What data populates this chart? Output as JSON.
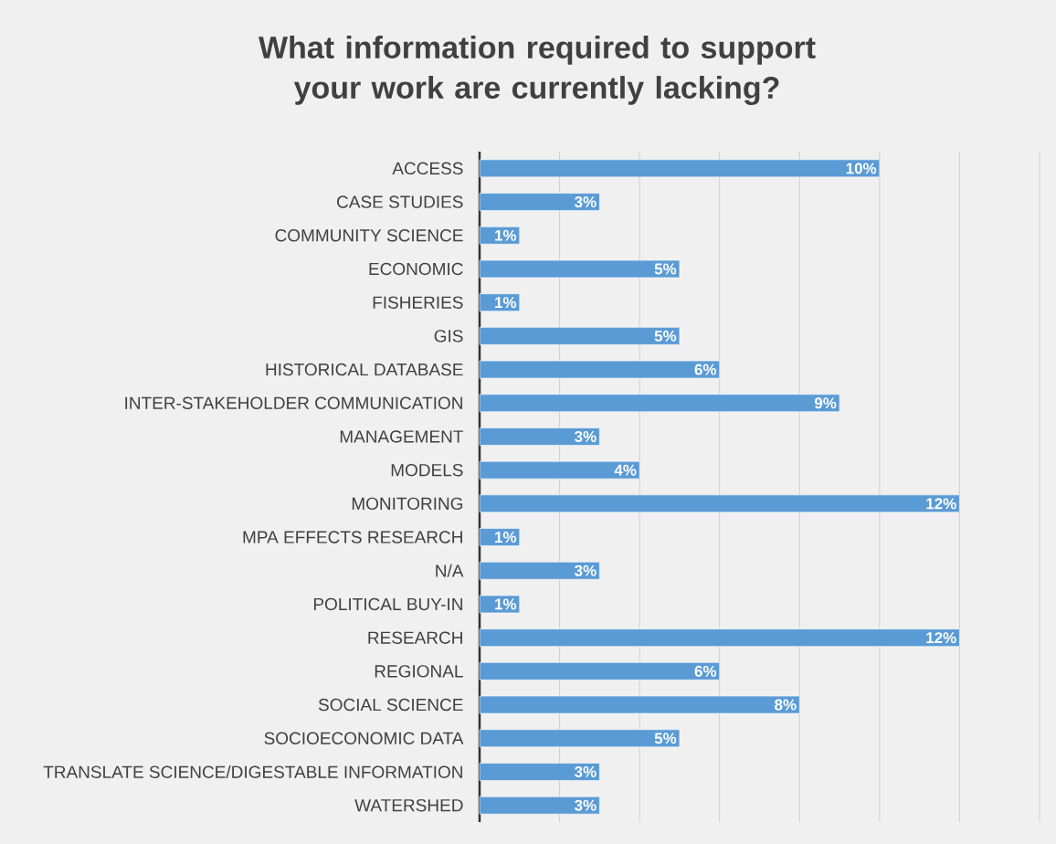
{
  "chart_data": {
    "type": "bar",
    "orientation": "horizontal",
    "title": "What information required to support your work are currently lacking?",
    "categories": [
      "ACCESS",
      "CASE STUDIES",
      "COMMUNITY SCIENCE",
      "ECONOMIC",
      "FISHERIES",
      "GIS",
      "HISTORICAL DATABASE",
      "INTER-STAKEHOLDER COMMUNICATION",
      "MANAGEMENT",
      "MODELS",
      "MONITORING",
      "MPA EFFECTS RESEARCH",
      "N/A",
      "POLITICAL BUY-IN",
      "RESEARCH",
      "REGIONAL",
      "SOCIAL SCIENCE",
      "SOCIOECONOMIC DATA",
      "TRANSLATE SCIENCE/DIGESTABLE INFORMATION",
      "WATERSHED"
    ],
    "values": [
      10,
      3,
      1,
      5,
      1,
      5,
      6,
      9,
      3,
      4,
      12,
      1,
      3,
      1,
      12,
      6,
      8,
      5,
      3,
      3
    ],
    "value_labels": [
      "10%",
      "3%",
      "1%",
      "5%",
      "1%",
      "5%",
      "6%",
      "9%",
      "3%",
      "4%",
      "12%",
      "1%",
      "3%",
      "1%",
      "12%",
      "6%",
      "8%",
      "5%",
      "3%",
      "3%"
    ],
    "color": "#5b9bd5",
    "xlim": [
      0,
      14
    ],
    "xticks": [
      {
        "value": 0,
        "label": null
      },
      {
        "value": 2,
        "label": null
      },
      {
        "value": 4,
        "label": null
      },
      {
        "value": 6,
        "label": null
      },
      {
        "value": 8,
        "label": null
      },
      {
        "value": 10,
        "label": null
      },
      {
        "value": 12,
        "label": null
      },
      {
        "value": 14,
        "label": null
      }
    ],
    "grid": "x"
  }
}
